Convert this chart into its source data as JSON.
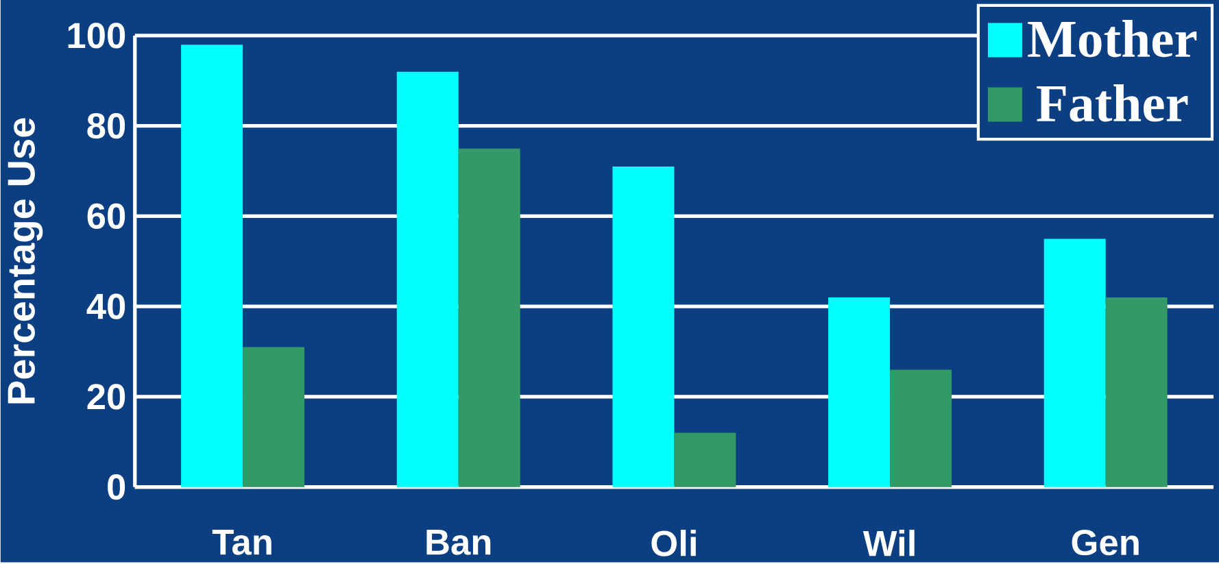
{
  "chart_data": {
    "type": "bar",
    "ylabel": "Percentage Use",
    "categories": [
      "Tan",
      "Ban",
      "Oli",
      "Wil",
      "Gen"
    ],
    "series": [
      {
        "name": "Mother",
        "color": "#00ffff",
        "values": [
          98,
          92,
          71,
          42,
          55
        ]
      },
      {
        "name": "Father",
        "color": "#339966",
        "values": [
          31,
          75,
          12,
          26,
          42
        ]
      }
    ],
    "ylim": [
      0,
      100
    ],
    "yticks": [
      0,
      20,
      40,
      60,
      80,
      100
    ],
    "grid": "y",
    "legend": "top right"
  }
}
